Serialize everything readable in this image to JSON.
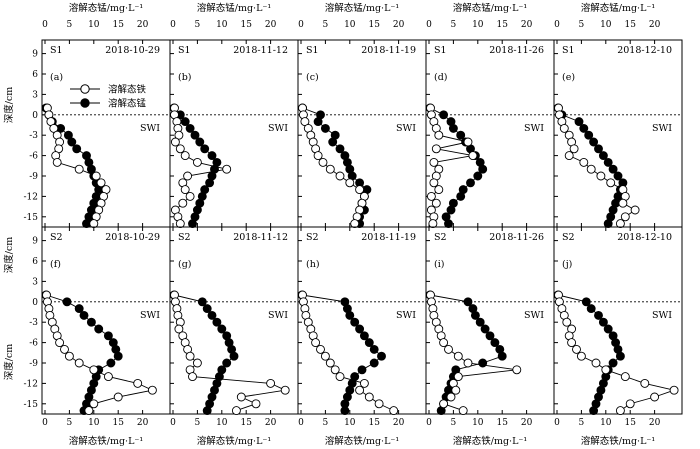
{
  "chart_data": {
    "type": "scatter",
    "top_axis_label": "溶解态锰/mg·L⁻¹",
    "bottom_axis_label": "溶解态铁/mg·L⁻¹",
    "y_axis_label": "深度/cm",
    "swi_label": "SWI",
    "legend": {
      "fe": "溶解态铁",
      "mn": "溶解态锰"
    },
    "xlim": [
      0,
      25
    ],
    "ylim": [
      -16.5,
      11
    ],
    "x_ticks": [
      0,
      5,
      10,
      15,
      20
    ],
    "y_ticks": [
      9,
      6,
      3,
      0,
      -3,
      -6,
      -9,
      -12,
      -15
    ],
    "depths": [
      1,
      0,
      -1,
      -2,
      -3,
      -4,
      -5,
      -6,
      -7,
      -8,
      -9,
      -10,
      -11,
      -12,
      -13,
      -14,
      -15,
      -16
    ],
    "panels": [
      {
        "letter": "(a)",
        "site": "S1",
        "date": "2018-10-29",
        "fe": [
          0.5,
          0.8,
          1.2,
          1.8,
          2.5,
          3.0,
          2.8,
          2.2,
          2.5,
          7.0,
          10.5,
          11.5,
          12.5,
          12.0,
          11.5,
          11.0,
          10.5,
          10.0
        ],
        "mn": [
          0.2,
          0.8,
          1.5,
          3.2,
          4.8,
          5.5,
          6.5,
          8.5,
          9.0,
          9.5,
          10.0,
          10.5,
          11.0,
          10.5,
          10.0,
          9.5,
          9.0,
          8.5
        ]
      },
      {
        "letter": "(b)",
        "site": "S1",
        "date": "2018-11-12",
        "fe": [
          0.3,
          0.3,
          0.8,
          1.0,
          1.2,
          0.5,
          1.5,
          2.5,
          5.0,
          11.0,
          3.0,
          2.0,
          2.5,
          3.5,
          2.0,
          0.5,
          1.0,
          1.5
        ],
        "mn": [
          0.2,
          1.5,
          2.5,
          3.5,
          4.5,
          5.5,
          6.5,
          8.0,
          9.0,
          8.5,
          8.0,
          7.5,
          6.5,
          6.0,
          5.5,
          5.0,
          4.5,
          4.0
        ]
      },
      {
        "letter": "(c)",
        "site": "S1",
        "date": "2018-11-19",
        "fe": [
          0.3,
          0.5,
          0.8,
          1.5,
          2.0,
          2.5,
          3.0,
          3.5,
          4.5,
          6.0,
          8.0,
          10.0,
          12.0,
          13.0,
          12.5,
          12.0,
          11.5,
          11.0
        ],
        "mn": [
          0.3,
          4.0,
          3.5,
          5.0,
          7.0,
          6.5,
          8.0,
          9.0,
          9.5,
          10.0,
          10.5,
          12.0,
          13.5,
          13.0,
          12.5,
          13.0,
          12.0,
          12.0
        ]
      },
      {
        "letter": "(d)",
        "site": "S1",
        "date": "2018-11-26",
        "fe": [
          0.3,
          0.5,
          1.0,
          1.5,
          2.0,
          8.0,
          1.5,
          9.0,
          1.0,
          2.0,
          1.5,
          1.0,
          2.0,
          0.5,
          1.5,
          0.5,
          1.0,
          0.8
        ],
        "mn": [
          0.2,
          3.0,
          4.5,
          5.0,
          6.5,
          7.5,
          8.5,
          9.5,
          10.5,
          11.0,
          10.0,
          8.5,
          7.0,
          6.5,
          5.0,
          4.5,
          3.5,
          4.0
        ]
      },
      {
        "letter": "(e)",
        "site": "S1",
        "date": "2018-12-10",
        "fe": [
          0.3,
          0.5,
          1.0,
          1.5,
          2.5,
          3.0,
          3.5,
          2.5,
          5.5,
          7.0,
          9.0,
          11.0,
          13.5,
          14.0,
          13.5,
          16.0,
          14.0,
          13.0
        ],
        "mn": [
          0.2,
          1.0,
          4.5,
          5.5,
          6.5,
          7.5,
          8.5,
          9.5,
          10.5,
          11.5,
          12.5,
          13.5,
          13.0,
          12.5,
          12.0,
          11.5,
          11.0,
          10.5
        ]
      },
      {
        "letter": "(f)",
        "site": "S2",
        "date": "2018-10-29",
        "fe": [
          0.3,
          0.5,
          0.8,
          1.0,
          1.5,
          2.0,
          2.5,
          3.0,
          4.0,
          5.0,
          7.0,
          10.0,
          13.0,
          19.0,
          22.0,
          15.0,
          10.0,
          9.0
        ],
        "mn": [
          0.2,
          4.5,
          7.0,
          8.0,
          9.5,
          11.0,
          13.0,
          14.0,
          14.5,
          15.0,
          13.5,
          11.0,
          10.5,
          10.0,
          9.5,
          9.0,
          8.5,
          8.0
        ]
      },
      {
        "letter": "(g)",
        "site": "S2",
        "date": "2018-11-12",
        "fe": [
          0.3,
          0.5,
          0.8,
          1.0,
          1.5,
          1.2,
          2.0,
          2.5,
          3.0,
          3.5,
          5.0,
          3.5,
          4.0,
          20.0,
          23.0,
          14.0,
          17.0,
          13.0
        ],
        "mn": [
          0.2,
          6.0,
          7.0,
          8.0,
          9.0,
          10.0,
          11.0,
          11.5,
          12.0,
          12.5,
          11.0,
          10.0,
          9.5,
          9.0,
          8.5,
          8.0,
          7.5,
          7.0
        ]
      },
      {
        "letter": "(h)",
        "site": "S2",
        "date": "2018-11-19",
        "fe": [
          0.3,
          0.5,
          0.8,
          1.0,
          1.5,
          2.0,
          2.5,
          3.0,
          4.0,
          5.0,
          6.0,
          7.0,
          8.0,
          13.0,
          12.0,
          14.0,
          16.0,
          19.0
        ],
        "mn": [
          0.2,
          9.0,
          9.5,
          10.0,
          11.0,
          12.0,
          13.0,
          14.0,
          15.0,
          16.5,
          15.0,
          12.5,
          11.0,
          10.5,
          10.0,
          9.5,
          9.0,
          9.0
        ]
      },
      {
        "letter": "(i)",
        "site": "S2",
        "date": "2018-11-26",
        "fe": [
          0.3,
          0.5,
          0.8,
          1.0,
          1.5,
          2.0,
          2.5,
          3.0,
          4.0,
          6.0,
          8.0,
          18.0,
          6.0,
          5.0,
          5.5,
          4.5,
          3.0,
          7.0
        ],
        "mn": [
          0.2,
          8.0,
          9.0,
          9.5,
          10.5,
          11.5,
          12.5,
          13.5,
          14.5,
          15.0,
          11.0,
          5.5,
          5.0,
          4.5,
          4.0,
          3.5,
          3.0,
          2.5
        ]
      },
      {
        "letter": "(j)",
        "site": "S2",
        "date": "2018-12-10",
        "fe": [
          0.3,
          0.5,
          1.0,
          1.5,
          2.0,
          3.0,
          2.5,
          3.0,
          4.0,
          5.0,
          8.0,
          10.0,
          14.0,
          18.0,
          24.0,
          20.0,
          15.0,
          13.0
        ],
        "mn": [
          0.2,
          6.0,
          7.0,
          8.5,
          9.5,
          10.5,
          11.5,
          12.0,
          12.5,
          13.0,
          11.5,
          10.5,
          10.0,
          9.5,
          9.0,
          8.5,
          8.0,
          7.5
        ]
      }
    ]
  }
}
